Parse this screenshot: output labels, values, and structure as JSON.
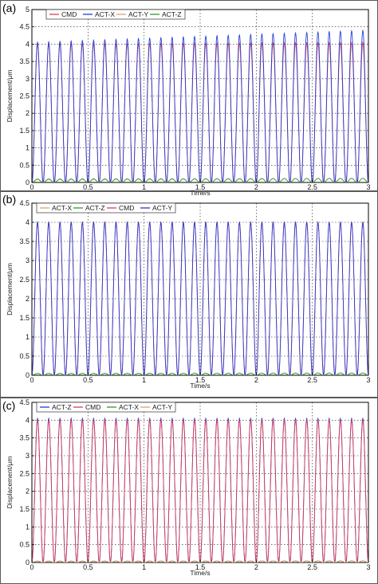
{
  "chart_data": [
    {
      "type": "line",
      "panel_label": "(a)",
      "xlabel": "Time/s",
      "ylabel": "Displacement/μm",
      "xlim": [
        0,
        3
      ],
      "ylim": [
        0,
        5
      ],
      "xticks": [
        0,
        0.5,
        1,
        1.5,
        2,
        2.5,
        3
      ],
      "yticks": [
        0,
        0.5,
        1,
        1.5,
        2,
        2.5,
        3,
        3.5,
        4,
        4.5,
        5
      ],
      "xtick_labels": [
        "0",
        "0.5",
        "1",
        "1.5",
        "2",
        "2.5",
        "3"
      ],
      "ytick_labels": [
        "0",
        "0.5",
        "1",
        "1.5",
        "2",
        "2.5",
        "3",
        "3.5",
        "4",
        "4.5",
        "5"
      ],
      "grid": true,
      "legend_position": "top",
      "frequency_hz": 10,
      "series": [
        {
          "name": "CMD",
          "color": "#e03c50",
          "min": 0,
          "max_start": 4.0,
          "max_end": 4.05
        },
        {
          "name": "ACT-X",
          "color": "#1f3bd6",
          "min": -0.05,
          "max_start": 4.05,
          "max_end": 4.4
        },
        {
          "name": "ACT-Y",
          "color": "#d9a27a",
          "min": 0,
          "max_start": 0.08,
          "max_end": 0.12
        },
        {
          "name": "ACT-Z",
          "color": "#2e9a2e",
          "min": 0,
          "max_start": 0.1,
          "max_end": 0.12
        }
      ]
    },
    {
      "type": "line",
      "panel_label": "(b)",
      "xlabel": "Time/s",
      "ylabel": "Displacement/μm",
      "xlim": [
        0,
        3
      ],
      "ylim": [
        0,
        4.5
      ],
      "xticks": [
        0,
        0.5,
        1,
        1.5,
        2,
        2.5,
        3
      ],
      "yticks": [
        0,
        0.5,
        1,
        1.5,
        2,
        2.5,
        3,
        3.5,
        4,
        4.5
      ],
      "xtick_labels": [
        "0",
        "0.5",
        "1",
        "1.5",
        "2",
        "2.5",
        "3"
      ],
      "ytick_labels": [
        "0",
        "0.5",
        "1",
        "1.5",
        "2",
        "2.5",
        "3",
        "3.5",
        "4",
        "4.5"
      ],
      "grid": true,
      "legend_position": "top",
      "frequency_hz": 10,
      "series": [
        {
          "name": "ACT-X",
          "color": "#d9a27a",
          "min": 0,
          "max_start": 0.05,
          "max_end": 0.06
        },
        {
          "name": "ACT-Z",
          "color": "#2e9a2e",
          "min": 0,
          "max_start": 0.05,
          "max_end": 0.06
        },
        {
          "name": "CMD",
          "color": "#e03c50",
          "min": 0,
          "max_start": 4.0,
          "max_end": 4.0
        },
        {
          "name": "ACT-Y",
          "color": "#1f3bd6",
          "min": 0,
          "max_start": 4.0,
          "max_end": 4.0
        }
      ]
    },
    {
      "type": "line",
      "panel_label": "(c)",
      "xlabel": "Time/s",
      "ylabel": "Displacement/μm",
      "xlim": [
        0,
        3
      ],
      "ylim": [
        0,
        4.5
      ],
      "xticks": [
        0,
        0.5,
        1,
        1.5,
        2,
        2.5,
        3
      ],
      "yticks": [
        0,
        0.5,
        1,
        1.5,
        2,
        2.5,
        3,
        3.5,
        4,
        4.5
      ],
      "xtick_labels": [
        "0",
        "0.5",
        "1",
        "1.5",
        "2",
        "2.5",
        "3"
      ],
      "ytick_labels": [
        "0",
        "0.5",
        "1",
        "1.5",
        "2",
        "2.5",
        "3",
        "3.5",
        "4",
        "4.5"
      ],
      "grid": true,
      "legend_position": "top",
      "frequency_hz": 10,
      "series": [
        {
          "name": "ACT-Z",
          "color": "#1f3bd6",
          "min": 0,
          "max_start": 4.05,
          "max_end": 4.05
        },
        {
          "name": "CMD",
          "color": "#e03c50",
          "min": 0,
          "max_start": 4.0,
          "max_end": 4.0
        },
        {
          "name": "ACT-X",
          "color": "#2e9a2e",
          "min": 0,
          "max_start": 0.04,
          "max_end": 0.05
        },
        {
          "name": "ACT-Y",
          "color": "#d9a27a",
          "min": 0,
          "max_start": 0.04,
          "max_end": 0.05
        }
      ]
    }
  ]
}
